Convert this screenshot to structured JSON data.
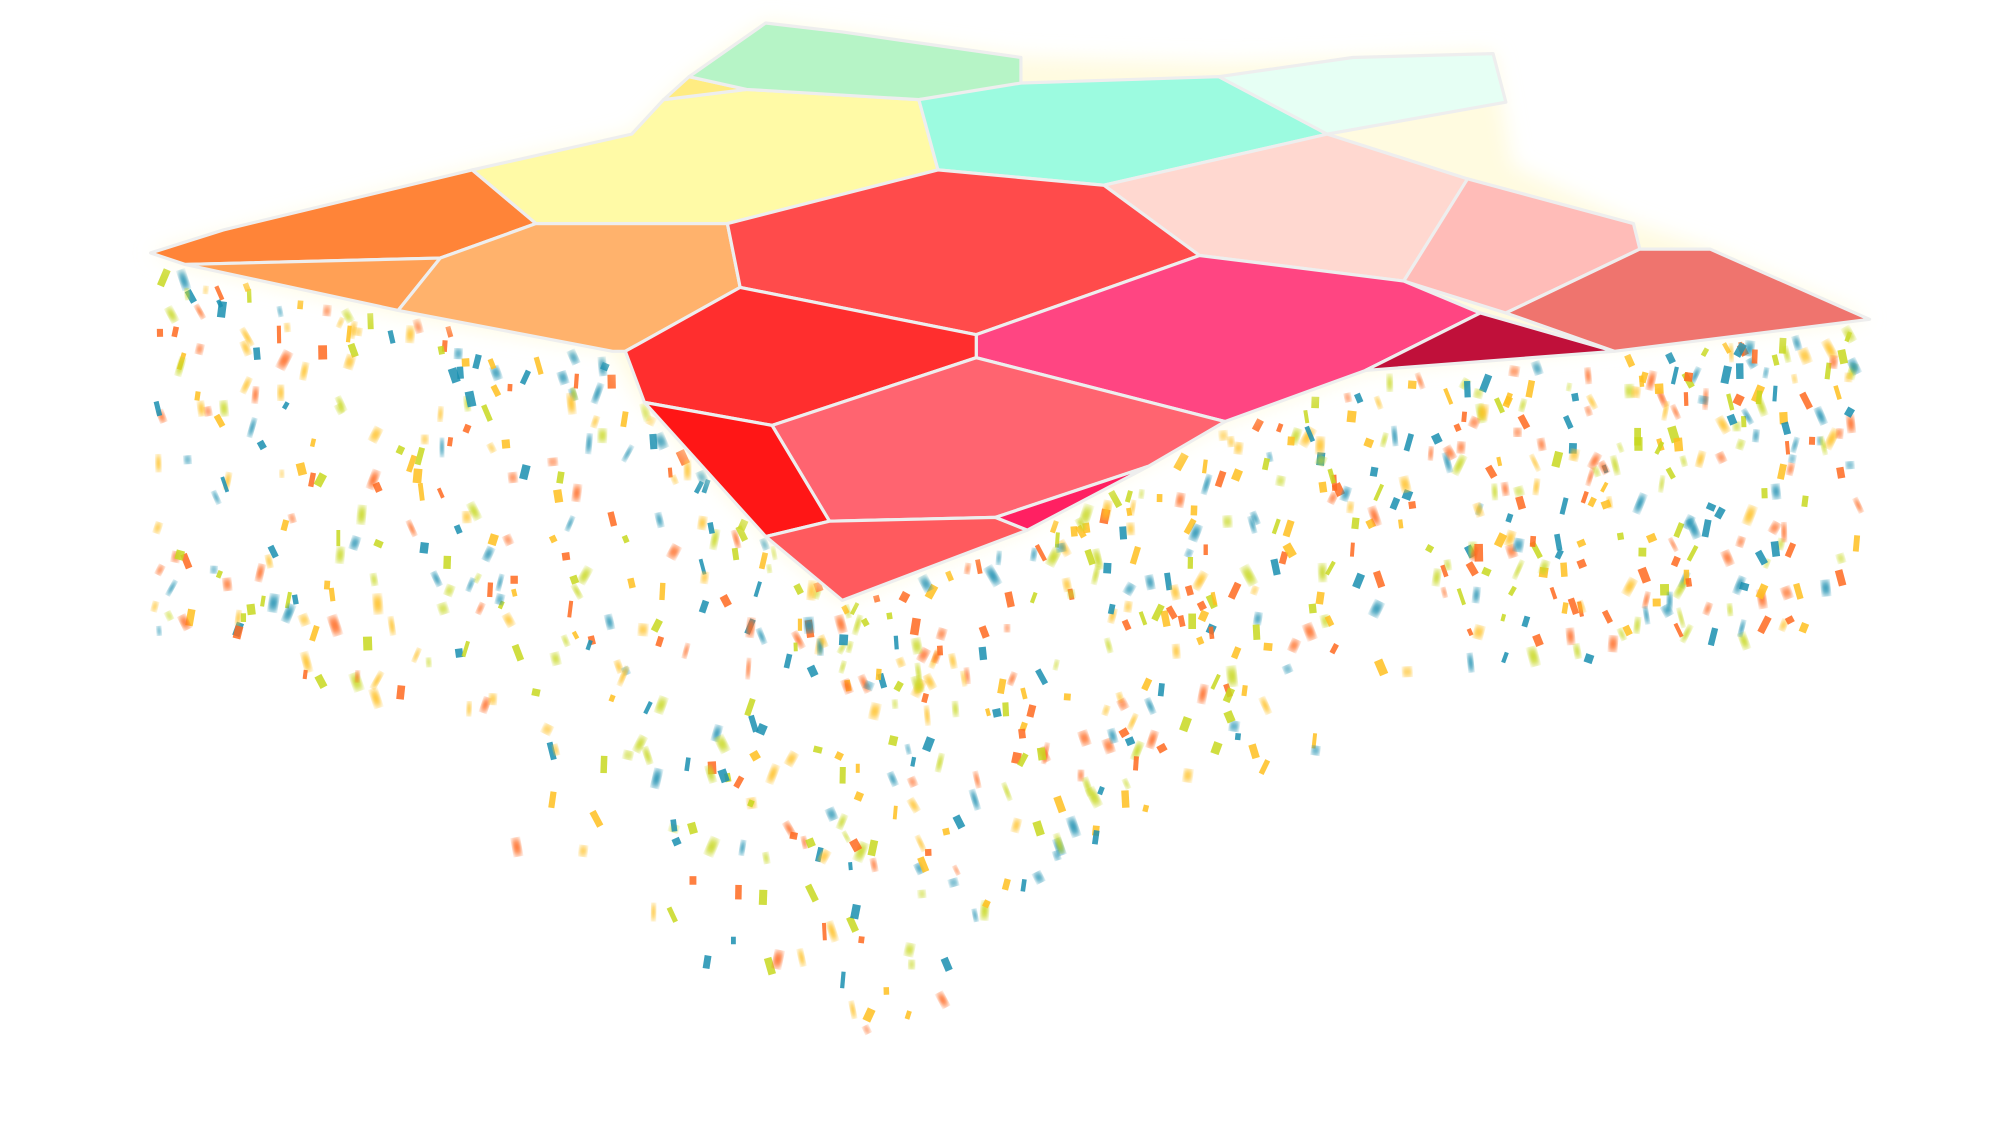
{
  "background": "#ffffff",
  "glow": "#fffbe0",
  "cells": {
    "orange-1": "#ff8438",
    "orange-2": "#ffa055",
    "orange-3": "#ffb26c",
    "yellow": "#fffaa6",
    "yellow-small": "#ffec82",
    "green-top": "#b6f4c6",
    "teal": "#9cfbe0",
    "white-teal": "#e6fff4",
    "pink-light": "#ffd8d0",
    "pink-mid": "#ffbcb8",
    "salmon": "#ef746e",
    "red-large": "#ff4b4b",
    "magenta": "#ff4582",
    "crimson": "#c0103a",
    "red-mid": "#ff2e2e",
    "coral": "#ff6470",
    "red-deep": "#ff1616",
    "red-bottom": "#ff5a5e",
    "pink-strip": "#ff2062"
  },
  "confetti_colors": [
    "#1a8fb0",
    "#ff6a20",
    "#ffc020",
    "#c8d820"
  ]
}
